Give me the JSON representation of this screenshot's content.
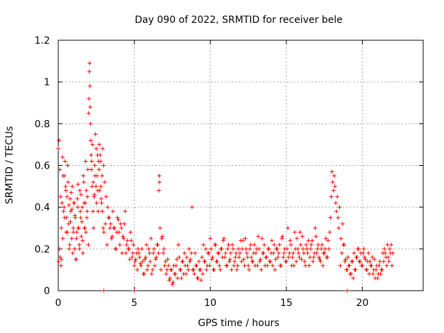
{
  "chart_data": {
    "type": "scatter",
    "title": "Day 090 of 2022, SRMTID for receiver bele",
    "xlabel": "GPS time / hours",
    "ylabel": "SRMTID / TECUs",
    "xlim": [
      0,
      24
    ],
    "ylim": [
      0,
      1.2
    ],
    "xticks": [
      0,
      5,
      10,
      15,
      20
    ],
    "xtick_labels": [
      "0",
      "5",
      "10",
      "15",
      "20"
    ],
    "yticks": [
      0,
      0.2,
      0.4,
      0.6,
      0.8,
      1.0,
      1.2
    ],
    "ytick_labels": [
      "0",
      "0.2",
      "0.4",
      "0.6",
      "0.8",
      "1",
      "1.2"
    ],
    "grid": true,
    "marker": "+",
    "color": "#ff0000",
    "series": [
      {
        "name": "SRMTID",
        "x": [
          0.0,
          0.05,
          0.1,
          0.15,
          0.2,
          0.25,
          0.3,
          0.35,
          0.4,
          0.45,
          0.5,
          0.55,
          0.6,
          0.65,
          0.7,
          0.75,
          0.8,
          0.85,
          0.9,
          0.95,
          1.0,
          1.05,
          1.1,
          1.15,
          1.2,
          1.25,
          1.3,
          1.35,
          1.4,
          1.45,
          1.5,
          1.55,
          1.6,
          1.65,
          1.7,
          1.75,
          1.8,
          1.85,
          1.9,
          1.95,
          2.0,
          2.02,
          2.04,
          2.06,
          2.08,
          2.1,
          2.12,
          2.14,
          2.16,
          2.18,
          2.2,
          2.25,
          2.3,
          2.35,
          2.4,
          2.45,
          2.5,
          2.55,
          2.6,
          2.65,
          2.7,
          2.75,
          2.8,
          2.85,
          2.9,
          2.95,
          3.0,
          3.1,
          3.2,
          3.3,
          3.4,
          3.5,
          3.6,
          3.7,
          3.8,
          3.9,
          4.0,
          4.1,
          4.2,
          4.3,
          4.4,
          4.5,
          4.6,
          4.7,
          4.8,
          4.9,
          5.0,
          5.1,
          5.2,
          5.3,
          5.4,
          5.5,
          5.6,
          5.7,
          5.8,
          5.9,
          6.0,
          6.1,
          6.2,
          6.3,
          6.4,
          6.5,
          6.6,
          6.62,
          6.64,
          6.66,
          6.7,
          6.8,
          6.9,
          7.0,
          7.1,
          7.2,
          7.3,
          7.4,
          7.5,
          7.6,
          7.7,
          7.8,
          7.9,
          8.0,
          8.1,
          8.2,
          8.3,
          8.4,
          8.5,
          8.6,
          8.7,
          8.8,
          8.9,
          9.0,
          9.1,
          9.2,
          9.3,
          9.4,
          9.5,
          9.6,
          9.7,
          9.8,
          9.9,
          10.0,
          10.1,
          10.2,
          10.3,
          10.4,
          10.5,
          10.6,
          10.7,
          10.8,
          10.9,
          11.0,
          11.1,
          11.2,
          11.3,
          11.4,
          11.5,
          11.6,
          11.7,
          11.8,
          11.9,
          12.0,
          12.1,
          12.2,
          12.3,
          12.4,
          12.5,
          12.6,
          12.7,
          12.8,
          12.9,
          13.0,
          13.1,
          13.2,
          13.3,
          13.4,
          13.5,
          13.6,
          13.7,
          13.8,
          13.9,
          14.0,
          14.1,
          14.2,
          14.3,
          14.4,
          14.5,
          14.6,
          14.7,
          14.8,
          14.9,
          15.0,
          15.1,
          15.2,
          15.3,
          15.4,
          15.5,
          15.6,
          15.7,
          15.8,
          15.9,
          16.0,
          16.1,
          16.2,
          16.3,
          16.4,
          16.5,
          16.6,
          16.7,
          16.8,
          16.9,
          17.0,
          17.1,
          17.2,
          17.3,
          17.4,
          17.5,
          17.6,
          17.7,
          17.8,
          17.85,
          17.9,
          17.95,
          18.0,
          18.05,
          18.1,
          18.15,
          18.2,
          18.25,
          18.3,
          18.35,
          18.4,
          18.45,
          18.5,
          18.6,
          18.7,
          18.8,
          18.9,
          19.0,
          19.1,
          19.2,
          19.3,
          19.4,
          19.5,
          19.6,
          19.7,
          19.8,
          19.9,
          20.0,
          20.1,
          20.2,
          20.3,
          20.4,
          20.5,
          20.6,
          20.7,
          20.8,
          20.9,
          21.0,
          21.1,
          21.2,
          21.3,
          21.4,
          21.5,
          21.6,
          21.7,
          21.8,
          21.9,
          22.0,
          0.02,
          0.08,
          0.12,
          0.18,
          0.22,
          0.28,
          0.32,
          0.38,
          0.42,
          0.48,
          0.52,
          0.58,
          0.62,
          0.68,
          0.72,
          0.78,
          0.82,
          0.88,
          0.92,
          0.98,
          1.02,
          1.08,
          1.12,
          1.18,
          1.22,
          1.28,
          1.32,
          1.38,
          1.42,
          1.48,
          1.52,
          1.58,
          1.62,
          1.68,
          1.72,
          1.78,
          1.82,
          1.88,
          1.92,
          1.98,
          2.22,
          2.28,
          2.32,
          2.38,
          2.42,
          2.48,
          2.52,
          2.58,
          2.62,
          2.68,
          2.72,
          2.78,
          2.82,
          2.88,
          2.92,
          2.98,
          3.05,
          3.15,
          3.25,
          3.35,
          3.45,
          3.55,
          3.65,
          3.75,
          3.85,
          3.95,
          4.05,
          4.15,
          4.25,
          4.35,
          4.45,
          4.55,
          4.65,
          4.75,
          4.85,
          4.95,
          5.05,
          5.15,
          5.25,
          5.35,
          5.45,
          5.55,
          5.65,
          5.75,
          5.85,
          5.95,
          6.05,
          6.15,
          6.25,
          6.35,
          6.45,
          6.55,
          6.75,
          6.85,
          6.95,
          7.05,
          7.15,
          7.25,
          7.35,
          7.45,
          7.55,
          7.65,
          7.75,
          7.85,
          7.95,
          8.05,
          8.15,
          8.25,
          8.35,
          8.45,
          8.55,
          8.65,
          8.75,
          8.85,
          8.95,
          9.05,
          9.15,
          9.25,
          9.35,
          9.45,
          9.55,
          9.65,
          9.75,
          9.85,
          9.95,
          10.05,
          10.15,
          10.25,
          10.35,
          10.45,
          10.55,
          10.65,
          10.75,
          10.85,
          10.95,
          11.05,
          11.15,
          11.25,
          11.35,
          11.45,
          11.55,
          11.65,
          11.75,
          11.85,
          11.95,
          12.05,
          12.15,
          12.25,
          12.35,
          12.45,
          12.55,
          12.65,
          12.75,
          12.85,
          12.95,
          13.05,
          13.15,
          13.25,
          13.35,
          13.45,
          13.55,
          13.65,
          13.75,
          13.85,
          13.95,
          14.05,
          14.15,
          14.25,
          14.35,
          14.45,
          14.55,
          14.65,
          14.75,
          14.85,
          14.95,
          15.05,
          15.15,
          15.25,
          15.35,
          15.45,
          15.55,
          15.65,
          15.75,
          15.85,
          15.95,
          16.05,
          16.15,
          16.25,
          16.35,
          16.45,
          16.55,
          16.65,
          16.75,
          16.85,
          16.95,
          17.05,
          17.15,
          17.25,
          17.35,
          17.45,
          17.55,
          17.65,
          17.75,
          18.55,
          18.65,
          18.75,
          18.85,
          18.95,
          19.05,
          19.15,
          19.25,
          19.35,
          19.45,
          19.55,
          19.65,
          19.75,
          19.85,
          19.95,
          20.05,
          20.15,
          20.25,
          20.35,
          20.45,
          20.55,
          20.65,
          20.75,
          20.85,
          20.95,
          21.05,
          21.15,
          21.25,
          21.35,
          21.45,
          21.55,
          21.65,
          21.75,
          21.85,
          21.95,
          3.0,
          5.0,
          19.0
        ],
        "y": [
          0.68,
          0.72,
          0.58,
          0.45,
          0.3,
          0.42,
          0.25,
          0.38,
          0.55,
          0.62,
          0.48,
          0.35,
          0.28,
          0.52,
          0.41,
          0.22,
          0.33,
          0.47,
          0.39,
          0.18,
          0.28,
          0.42,
          0.36,
          0.15,
          0.25,
          0.44,
          0.51,
          0.3,
          0.2,
          0.38,
          0.46,
          0.33,
          0.24,
          0.55,
          0.42,
          0.3,
          0.62,
          0.48,
          0.38,
          0.58,
          0.85,
          0.92,
          1.05,
          1.09,
          0.98,
          0.88,
          0.8,
          0.72,
          0.65,
          0.58,
          0.62,
          0.7,
          0.52,
          0.45,
          0.6,
          0.75,
          0.68,
          0.55,
          0.48,
          0.62,
          0.7,
          0.65,
          0.5,
          0.42,
          0.38,
          0.3,
          0.28,
          0.32,
          0.22,
          0.35,
          0.3,
          0.25,
          0.38,
          0.3,
          0.2,
          0.35,
          0.28,
          0.32,
          0.18,
          0.25,
          0.38,
          0.22,
          0.2,
          0.15,
          0.24,
          0.18,
          0.12,
          0.15,
          0.1,
          0.18,
          0.13,
          0.2,
          0.08,
          0.15,
          0.22,
          0.12,
          0.18,
          0.25,
          0.1,
          0.2,
          0.15,
          0.22,
          0.18,
          0.48,
          0.55,
          0.52,
          0.3,
          0.25,
          0.18,
          0.12,
          0.08,
          0.15,
          0.05,
          0.1,
          0.03,
          0.12,
          0.08,
          0.15,
          0.22,
          0.1,
          0.06,
          0.14,
          0.18,
          0.08,
          0.12,
          0.2,
          0.15,
          0.4,
          0.1,
          0.18,
          0.12,
          0.06,
          0.1,
          0.05,
          0.08,
          0.14,
          0.2,
          0.12,
          0.18,
          0.25,
          0.15,
          0.1,
          0.22,
          0.14,
          0.18,
          0.12,
          0.2,
          0.16,
          0.25,
          0.18,
          0.12,
          0.22,
          0.15,
          0.1,
          0.2,
          0.14,
          0.18,
          0.12,
          0.16,
          0.24,
          0.2,
          0.15,
          0.25,
          0.18,
          0.12,
          0.2,
          0.16,
          0.14,
          0.22,
          0.18,
          0.12,
          0.2,
          0.15,
          0.25,
          0.18,
          0.12,
          0.16,
          0.2,
          0.14,
          0.18,
          0.12,
          0.22,
          0.15,
          0.2,
          0.18,
          0.12,
          0.25,
          0.16,
          0.2,
          0.14,
          0.3,
          0.18,
          0.22,
          0.16,
          0.12,
          0.2,
          0.25,
          0.18,
          0.28,
          0.15,
          0.2,
          0.14,
          0.22,
          0.18,
          0.12,
          0.2,
          0.24,
          0.16,
          0.3,
          0.18,
          0.22,
          0.15,
          0.2,
          0.12,
          0.18,
          0.25,
          0.16,
          0.2,
          0.28,
          0.35,
          0.45,
          0.57,
          0.52,
          0.48,
          0.55,
          0.5,
          0.42,
          0.38,
          0.45,
          0.35,
          0.3,
          0.4,
          0.25,
          0.32,
          0.22,
          0.15,
          0.1,
          0.12,
          0.08,
          0.14,
          0.06,
          0.1,
          0.16,
          0.2,
          0.14,
          0.18,
          0.12,
          0.2,
          0.15,
          0.1,
          0.18,
          0.14,
          0.12,
          0.08,
          0.15,
          0.1,
          0.06,
          0.12,
          0.08,
          0.1,
          0.14,
          0.18,
          0.12,
          0.16,
          0.2,
          0.22,
          0.18,
          0.14,
          0.2,
          0.16,
          0.12,
          0.15,
          0.64,
          0.55,
          0.4,
          0.35,
          0.5,
          0.28,
          0.45,
          0.6,
          0.32,
          0.2,
          0.44,
          0.38,
          0.25,
          0.5,
          0.3,
          0.42,
          0.2,
          0.35,
          0.15,
          0.28,
          0.4,
          0.3,
          0.22,
          0.48,
          0.35,
          0.26,
          0.4,
          0.18,
          0.52,
          0.3,
          0.42,
          0.28,
          0.35,
          0.45,
          0.22,
          0.5,
          0.38,
          0.3,
          0.46,
          0.55,
          0.5,
          0.42,
          0.65,
          0.38,
          0.58,
          0.48,
          0.62,
          0.44,
          0.55,
          0.68,
          0.6,
          0.52,
          0.45,
          0.4,
          0.35,
          0.32,
          0.26,
          0.3,
          0.2,
          0.28,
          0.34,
          0.22,
          0.3,
          0.26,
          0.32,
          0.18,
          0.24,
          0.2,
          0.28,
          0.16,
          0.22,
          0.14,
          0.18,
          0.2,
          0.16,
          0.12,
          0.14,
          0.08,
          0.16,
          0.1,
          0.2,
          0.14,
          0.08,
          0.18,
          0.12,
          0.16,
          0.22,
          0.1,
          0.26,
          0.2,
          0.14,
          0.1,
          0.12,
          0.06,
          0.1,
          0.04,
          0.08,
          0.12,
          0.06,
          0.16,
          0.1,
          0.14,
          0.08,
          0.12,
          0.16,
          0.1,
          0.14,
          0.18,
          0.1,
          0.08,
          0.12,
          0.06,
          0.14,
          0.1,
          0.16,
          0.22,
          0.14,
          0.1,
          0.18,
          0.12,
          0.2,
          0.16,
          0.1,
          0.22,
          0.14,
          0.18,
          0.1,
          0.2,
          0.24,
          0.16,
          0.12,
          0.2,
          0.14,
          0.18,
          0.22,
          0.12,
          0.16,
          0.1,
          0.2,
          0.18,
          0.14,
          0.24,
          0.12,
          0.2,
          0.16,
          0.1,
          0.22,
          0.14,
          0.18,
          0.12,
          0.2,
          0.26,
          0.14,
          0.1,
          0.18,
          0.22,
          0.16,
          0.12,
          0.2,
          0.14,
          0.24,
          0.18,
          0.1,
          0.2,
          0.16,
          0.22,
          0.12,
          0.26,
          0.18,
          0.14,
          0.2,
          0.16,
          0.24,
          0.12,
          0.18,
          0.28,
          0.14,
          0.2,
          0.16,
          0.22,
          0.26,
          0.18,
          0.12,
          0.2,
          0.24,
          0.16,
          0.22,
          0.14,
          0.18,
          0.26,
          0.2,
          0.16,
          0.14,
          0.22,
          0.18,
          0.2,
          0.16,
          0.24,
          0.12,
          0.18,
          0.22,
          0.14,
          0.1,
          0.16,
          0.12,
          0.08,
          0.14,
          0.18,
          0.1,
          0.16,
          0.2,
          0.14,
          0.12,
          0.18,
          0.16,
          0.1,
          0.14,
          0.08,
          0.12,
          0.16,
          0.1,
          0.06,
          0.12,
          0.08,
          0.14,
          0.1,
          0.18,
          0.2,
          0.16,
          0.22,
          0.14,
          0.18,
          0.12,
          0.0,
          0.0,
          0.0
        ]
      }
    ]
  }
}
